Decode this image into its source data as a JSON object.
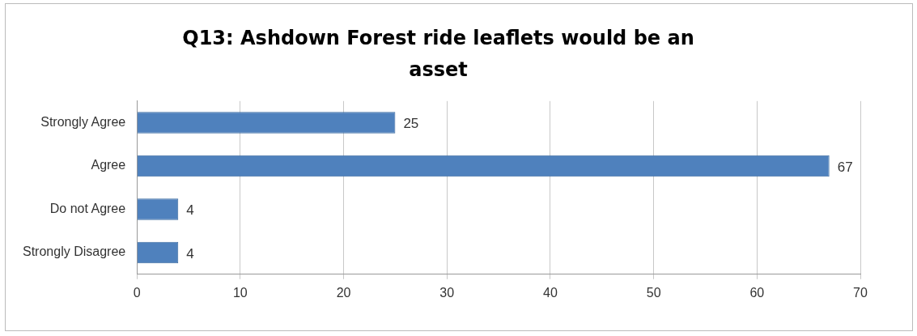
{
  "chart_data": {
    "type": "bar",
    "orientation": "horizontal",
    "title": "Q13: Ashdown Forest ride leaflets would be an asset",
    "categories": [
      "Strongly Agree",
      "Agree",
      "Do not Agree",
      "Strongly Disagree"
    ],
    "values": [
      25,
      67,
      4,
      4
    ],
    "color": "#4f81bd",
    "xlim": [
      0,
      70
    ],
    "xticks": [
      0,
      10,
      20,
      30,
      40,
      50,
      60,
      70
    ],
    "grid": "x",
    "data_labels": true
  }
}
